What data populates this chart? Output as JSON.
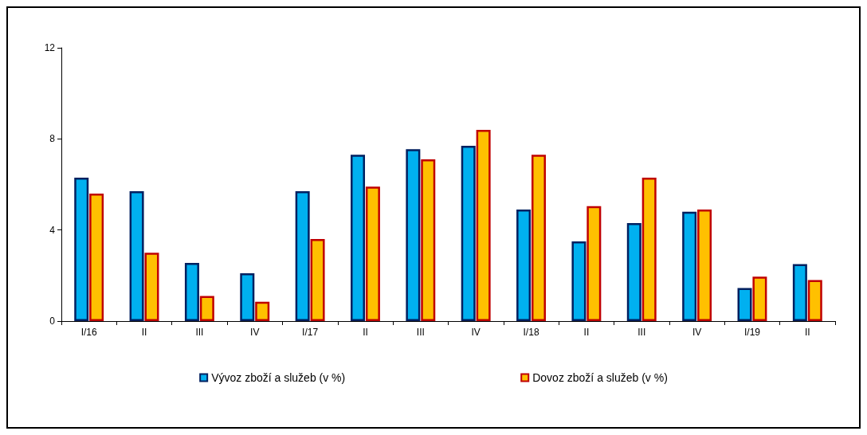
{
  "chart_data": {
    "type": "bar",
    "categories": [
      "I/16",
      "II",
      "III",
      "IV",
      "I/17",
      "II",
      "III",
      "IV",
      "I/18",
      "II",
      "III",
      "IV",
      "I/19",
      "II"
    ],
    "series": [
      {
        "name": "Vývoz zboží a služeb (v %)",
        "color": "#00b0f0",
        "values": [
          6.3,
          5.7,
          2.55,
          2.1,
          5.7,
          7.3,
          7.55,
          7.7,
          4.9,
          3.5,
          4.3,
          4.8,
          1.45,
          2.5
        ]
      },
      {
        "name": "Dovoz zboží a služeb (v %)",
        "color": "#ffc000",
        "values": [
          5.6,
          3.0,
          1.1,
          0.85,
          3.6,
          5.9,
          7.1,
          8.4,
          7.3,
          5.05,
          6.3,
          4.9,
          1.95,
          1.8
        ]
      }
    ],
    "ylim": [
      0,
      12
    ],
    "yticks": [
      0,
      4,
      8,
      12
    ],
    "grid": false,
    "legend": "bottom"
  }
}
